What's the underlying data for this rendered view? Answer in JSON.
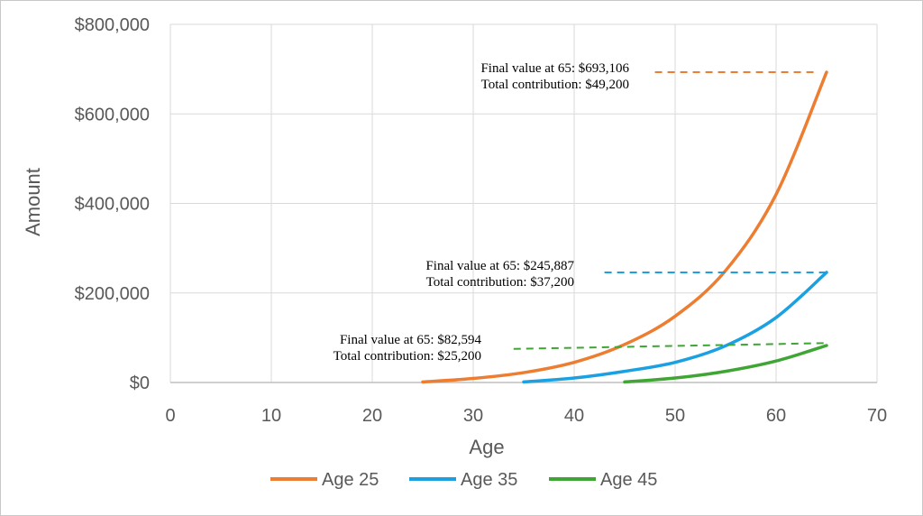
{
  "chart_data": {
    "type": "line",
    "xlabel": "Age",
    "ylabel": "Amount",
    "xlim": [
      0,
      70
    ],
    "ylim": [
      0,
      800000
    ],
    "x_ticks": [
      0,
      10,
      20,
      30,
      40,
      50,
      60,
      70
    ],
    "y_ticks": [
      {
        "value": 0,
        "label": "$0"
      },
      {
        "value": 200000,
        "label": "$200,000"
      },
      {
        "value": 400000,
        "label": "$400,000"
      },
      {
        "value": 600000,
        "label": "$600,000"
      },
      {
        "value": 800000,
        "label": "$800,000"
      }
    ],
    "grid": true,
    "legend_position": "bottom",
    "series": [
      {
        "name": "Age 25",
        "color": "#ED7D31",
        "x": [
          25,
          30,
          35,
          40,
          45,
          50,
          55,
          60,
          65
        ],
        "y": [
          1200,
          9000,
          22000,
          45000,
          85000,
          148000,
          250000,
          420000,
          693106
        ],
        "final_line": {
          "value": 693106,
          "x_from": 48,
          "x_to": 64
        },
        "annotation": [
          "Final value at 65: $693,106",
          "Total contribution: $49,200"
        ]
      },
      {
        "name": "Age 35",
        "color": "#1BA1E2",
        "x": [
          35,
          40,
          45,
          50,
          55,
          60,
          65
        ],
        "y": [
          1200,
          10000,
          25000,
          45000,
          82000,
          145000,
          245887
        ],
        "final_line": {
          "value": 245887,
          "x_from": 43,
          "x_to": 65
        },
        "annotation": [
          "Final value at 65: $245,887",
          "Total contribution: $37,200"
        ]
      },
      {
        "name": "Age 45",
        "color": "#3FA535",
        "x": [
          45,
          50,
          55,
          60,
          65
        ],
        "y": [
          1200,
          10000,
          25000,
          48000,
          82594
        ],
        "final_line": {
          "value_from": 75000,
          "value_to": 88000,
          "x_from": 34,
          "x_to": 65
        },
        "annotation": [
          "Final value at 65: $82,594",
          "Total contribution: $25,200"
        ]
      }
    ]
  }
}
